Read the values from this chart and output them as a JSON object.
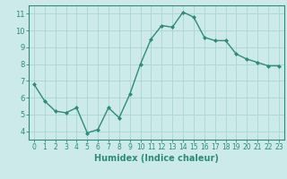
{
  "x": [
    0,
    1,
    2,
    3,
    4,
    5,
    6,
    7,
    8,
    9,
    10,
    11,
    12,
    13,
    14,
    15,
    16,
    17,
    18,
    19,
    20,
    21,
    22,
    23
  ],
  "y": [
    6.8,
    5.8,
    5.2,
    5.1,
    5.4,
    3.9,
    4.1,
    5.4,
    4.8,
    6.2,
    8.0,
    9.5,
    10.3,
    10.2,
    11.1,
    10.8,
    9.6,
    9.4,
    9.4,
    8.6,
    8.3,
    8.1,
    7.9,
    7.9
  ],
  "line_color": "#2e8b7a",
  "marker": "D",
  "marker_size": 2.0,
  "bg_color": "#cceaea",
  "grid_color": "#aad4d4",
  "xlabel": "Humidex (Indice chaleur)",
  "xlim": [
    -0.5,
    23.5
  ],
  "ylim": [
    3.5,
    11.5
  ],
  "yticks": [
    4,
    5,
    6,
    7,
    8,
    9,
    10,
    11
  ],
  "xticks": [
    0,
    1,
    2,
    3,
    4,
    5,
    6,
    7,
    8,
    9,
    10,
    11,
    12,
    13,
    14,
    15,
    16,
    17,
    18,
    19,
    20,
    21,
    22,
    23
  ],
  "xtick_labels": [
    "0",
    "1",
    "2",
    "3",
    "4",
    "5",
    "6",
    "7",
    "8",
    "9",
    "10",
    "11",
    "12",
    "13",
    "14",
    "15",
    "16",
    "17",
    "18",
    "19",
    "20",
    "21",
    "22",
    "23"
  ],
  "axis_color": "#2e8b7a",
  "tick_color": "#2e8b7a",
  "label_color": "#2e8b7a",
  "tick_fontsize": 5.5,
  "ytick_fontsize": 6.0,
  "xlabel_fontsize": 7.0,
  "linewidth": 1.0
}
